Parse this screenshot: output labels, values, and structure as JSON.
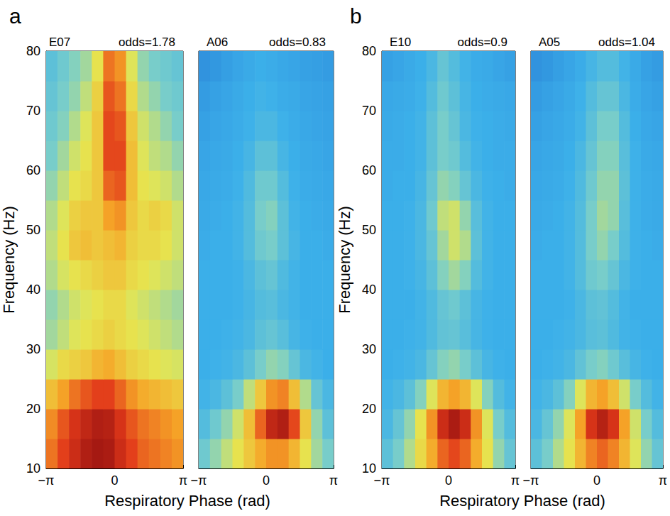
{
  "chart_data": [
    {
      "type": "heatmap",
      "panel_label": "a",
      "title": "E07",
      "subtitle": "odds=1.78",
      "xlabel": "Respiratory Phase (rad)",
      "ylabel": "Frequency (Hz)",
      "x": [
        -2.8798,
        -2.3562,
        -1.8326,
        -1.309,
        -0.7854,
        -0.2618,
        0.2618,
        0.7854,
        1.309,
        1.8326,
        2.3562,
        2.8798
      ],
      "y": [
        12.5,
        17.5,
        22.5,
        27.5,
        32.5,
        37.5,
        42.5,
        47.5,
        52.5,
        57.5,
        62.5,
        67.5,
        72.5,
        77.5
      ],
      "values": [
        [
          0.78,
          0.85,
          0.9,
          0.95,
          0.97,
          0.96,
          0.9,
          0.85,
          0.8,
          0.78,
          0.76,
          0.74
        ],
        [
          0.75,
          0.82,
          0.88,
          0.92,
          0.95,
          0.94,
          0.88,
          0.82,
          0.78,
          0.76,
          0.74,
          0.72
        ],
        [
          0.66,
          0.72,
          0.78,
          0.82,
          0.85,
          0.85,
          0.8,
          0.74,
          0.7,
          0.68,
          0.66,
          0.64
        ],
        [
          0.55,
          0.6,
          0.62,
          0.64,
          0.68,
          0.7,
          0.66,
          0.62,
          0.6,
          0.58,
          0.56,
          0.55
        ],
        [
          0.48,
          0.52,
          0.56,
          0.58,
          0.6,
          0.62,
          0.6,
          0.58,
          0.56,
          0.54,
          0.52,
          0.5
        ],
        [
          0.46,
          0.5,
          0.54,
          0.56,
          0.58,
          0.6,
          0.6,
          0.56,
          0.54,
          0.52,
          0.5,
          0.48
        ],
        [
          0.5,
          0.55,
          0.58,
          0.6,
          0.62,
          0.64,
          0.64,
          0.6,
          0.58,
          0.56,
          0.54,
          0.52
        ],
        [
          0.52,
          0.58,
          0.64,
          0.66,
          0.64,
          0.66,
          0.68,
          0.62,
          0.6,
          0.6,
          0.58,
          0.54
        ],
        [
          0.5,
          0.56,
          0.62,
          0.64,
          0.64,
          0.72,
          0.74,
          0.64,
          0.6,
          0.62,
          0.6,
          0.54
        ],
        [
          0.46,
          0.52,
          0.58,
          0.6,
          0.64,
          0.8,
          0.82,
          0.66,
          0.58,
          0.56,
          0.54,
          0.5
        ],
        [
          0.42,
          0.48,
          0.54,
          0.58,
          0.64,
          0.84,
          0.84,
          0.66,
          0.56,
          0.52,
          0.5,
          0.46
        ],
        [
          0.4,
          0.44,
          0.5,
          0.56,
          0.64,
          0.84,
          0.82,
          0.64,
          0.54,
          0.5,
          0.46,
          0.42
        ],
        [
          0.38,
          0.42,
          0.46,
          0.52,
          0.62,
          0.82,
          0.78,
          0.6,
          0.5,
          0.46,
          0.42,
          0.4
        ],
        [
          0.36,
          0.4,
          0.44,
          0.48,
          0.58,
          0.78,
          0.74,
          0.56,
          0.46,
          0.42,
          0.4,
          0.38
        ]
      ],
      "xlim": [
        -3.1416,
        3.1416
      ],
      "ylim": [
        10,
        80
      ],
      "xticks": [
        {
          "value": -3.1416,
          "label": "−π"
        },
        0,
        {
          "value": 3.1416,
          "label": "π"
        }
      ],
      "yticks": [
        10,
        20,
        30,
        40,
        50,
        60,
        70,
        80
      ],
      "clim": [
        0,
        1
      ]
    },
    {
      "type": "heatmap",
      "title": "A06",
      "subtitle": "odds=0.83",
      "tick_labels": "x",
      "x": [
        -2.8798,
        -2.3562,
        -1.8326,
        -1.309,
        -0.7854,
        -0.2618,
        0.2618,
        0.7854,
        1.309,
        1.8326,
        2.3562,
        2.8798
      ],
      "y": [
        12.5,
        17.5,
        22.5,
        27.5,
        32.5,
        37.5,
        42.5,
        47.5,
        52.5,
        57.5,
        62.5,
        67.5,
        72.5,
        77.5
      ],
      "values": [
        [
          0.4,
          0.46,
          0.52,
          0.58,
          0.64,
          0.7,
          0.74,
          0.74,
          0.68,
          0.58,
          0.48,
          0.42
        ],
        [
          0.34,
          0.4,
          0.46,
          0.54,
          0.66,
          0.8,
          0.92,
          0.95,
          0.84,
          0.64,
          0.46,
          0.36
        ],
        [
          0.3,
          0.32,
          0.36,
          0.42,
          0.52,
          0.64,
          0.74,
          0.76,
          0.66,
          0.5,
          0.38,
          0.32
        ],
        [
          0.28,
          0.29,
          0.3,
          0.32,
          0.36,
          0.42,
          0.46,
          0.44,
          0.38,
          0.32,
          0.3,
          0.28
        ],
        [
          0.28,
          0.28,
          0.29,
          0.3,
          0.32,
          0.36,
          0.38,
          0.35,
          0.31,
          0.29,
          0.28,
          0.28
        ],
        [
          0.28,
          0.28,
          0.28,
          0.29,
          0.31,
          0.34,
          0.35,
          0.32,
          0.3,
          0.28,
          0.28,
          0.28
        ],
        [
          0.28,
          0.28,
          0.28,
          0.29,
          0.32,
          0.36,
          0.38,
          0.33,
          0.3,
          0.28,
          0.28,
          0.28
        ],
        [
          0.27,
          0.28,
          0.28,
          0.3,
          0.34,
          0.4,
          0.42,
          0.36,
          0.31,
          0.28,
          0.28,
          0.27
        ],
        [
          0.26,
          0.27,
          0.28,
          0.3,
          0.34,
          0.42,
          0.44,
          0.36,
          0.3,
          0.28,
          0.27,
          0.26
        ],
        [
          0.25,
          0.26,
          0.27,
          0.29,
          0.33,
          0.4,
          0.4,
          0.34,
          0.29,
          0.27,
          0.26,
          0.25
        ],
        [
          0.24,
          0.25,
          0.26,
          0.28,
          0.31,
          0.36,
          0.36,
          0.31,
          0.28,
          0.26,
          0.25,
          0.24
        ],
        [
          0.22,
          0.24,
          0.25,
          0.27,
          0.29,
          0.32,
          0.32,
          0.29,
          0.27,
          0.25,
          0.24,
          0.23
        ],
        [
          0.2,
          0.22,
          0.24,
          0.26,
          0.28,
          0.3,
          0.29,
          0.27,
          0.26,
          0.24,
          0.23,
          0.22
        ],
        [
          0.16,
          0.18,
          0.21,
          0.24,
          0.26,
          0.28,
          0.27,
          0.25,
          0.24,
          0.22,
          0.21,
          0.2
        ]
      ],
      "xlim": [
        -3.1416,
        3.1416
      ],
      "ylim": [
        10,
        80
      ],
      "xticks": [
        {
          "value": -3.1416,
          "label": "−π"
        },
        0,
        {
          "value": 3.1416,
          "label": "π"
        }
      ],
      "yticks": [
        10,
        20,
        30,
        40,
        50,
        60,
        70,
        80
      ],
      "clim": [
        0,
        1
      ]
    },
    {
      "type": "heatmap",
      "panel_label": "b",
      "title": "E10",
      "subtitle": "odds=0.9",
      "xlabel": "Respiratory Phase (rad)",
      "ylabel": "Frequency (Hz)",
      "x": [
        -2.8798,
        -2.3562,
        -1.8326,
        -1.309,
        -0.7854,
        -0.2618,
        0.2618,
        0.7854,
        1.309,
        1.8326,
        2.3562,
        2.8798
      ],
      "y": [
        12.5,
        17.5,
        22.5,
        27.5,
        32.5,
        37.5,
        42.5,
        47.5,
        52.5,
        57.5,
        62.5,
        67.5,
        72.5,
        77.5
      ],
      "values": [
        [
          0.36,
          0.42,
          0.5,
          0.6,
          0.7,
          0.8,
          0.84,
          0.8,
          0.7,
          0.58,
          0.46,
          0.38
        ],
        [
          0.32,
          0.38,
          0.46,
          0.58,
          0.74,
          0.9,
          0.96,
          0.9,
          0.74,
          0.56,
          0.42,
          0.34
        ],
        [
          0.3,
          0.32,
          0.36,
          0.44,
          0.56,
          0.68,
          0.72,
          0.68,
          0.56,
          0.44,
          0.34,
          0.3
        ],
        [
          0.28,
          0.29,
          0.3,
          0.32,
          0.38,
          0.44,
          0.46,
          0.42,
          0.36,
          0.31,
          0.29,
          0.28
        ],
        [
          0.28,
          0.28,
          0.29,
          0.3,
          0.33,
          0.37,
          0.38,
          0.35,
          0.31,
          0.29,
          0.28,
          0.28
        ],
        [
          0.28,
          0.28,
          0.28,
          0.3,
          0.33,
          0.38,
          0.4,
          0.36,
          0.31,
          0.29,
          0.28,
          0.28
        ],
        [
          0.28,
          0.28,
          0.29,
          0.31,
          0.36,
          0.44,
          0.48,
          0.44,
          0.34,
          0.3,
          0.28,
          0.28
        ],
        [
          0.28,
          0.28,
          0.29,
          0.32,
          0.38,
          0.48,
          0.54,
          0.5,
          0.36,
          0.3,
          0.28,
          0.28
        ],
        [
          0.28,
          0.28,
          0.29,
          0.32,
          0.4,
          0.52,
          0.54,
          0.46,
          0.35,
          0.3,
          0.28,
          0.28
        ],
        [
          0.27,
          0.28,
          0.28,
          0.31,
          0.38,
          0.46,
          0.44,
          0.38,
          0.32,
          0.29,
          0.28,
          0.27
        ],
        [
          0.27,
          0.27,
          0.28,
          0.3,
          0.36,
          0.42,
          0.4,
          0.34,
          0.3,
          0.28,
          0.27,
          0.27
        ],
        [
          0.26,
          0.27,
          0.28,
          0.3,
          0.36,
          0.42,
          0.38,
          0.32,
          0.29,
          0.28,
          0.27,
          0.26
        ],
        [
          0.25,
          0.26,
          0.27,
          0.29,
          0.34,
          0.4,
          0.36,
          0.31,
          0.28,
          0.27,
          0.26,
          0.25
        ],
        [
          0.22,
          0.24,
          0.26,
          0.28,
          0.32,
          0.38,
          0.34,
          0.3,
          0.27,
          0.26,
          0.24,
          0.22
        ]
      ],
      "xlim": [
        -3.1416,
        3.1416
      ],
      "ylim": [
        10,
        80
      ],
      "xticks": [
        {
          "value": -3.1416,
          "label": "−π"
        },
        0,
        {
          "value": 3.1416,
          "label": "π"
        }
      ],
      "yticks": [
        10,
        20,
        30,
        40,
        50,
        60,
        70,
        80
      ],
      "clim": [
        0,
        1
      ]
    },
    {
      "type": "heatmap",
      "title": "A05",
      "subtitle": "odds=1.04",
      "tick_labels": "x",
      "x": [
        -2.8798,
        -2.3562,
        -1.8326,
        -1.309,
        -0.7854,
        -0.2618,
        0.2618,
        0.7854,
        1.309,
        1.8326,
        2.3562,
        2.8798
      ],
      "y": [
        12.5,
        17.5,
        22.5,
        27.5,
        32.5,
        37.5,
        42.5,
        47.5,
        52.5,
        57.5,
        62.5,
        67.5,
        72.5,
        77.5
      ],
      "values": [
        [
          0.36,
          0.42,
          0.5,
          0.58,
          0.68,
          0.76,
          0.8,
          0.76,
          0.68,
          0.56,
          0.46,
          0.38
        ],
        [
          0.32,
          0.38,
          0.46,
          0.56,
          0.72,
          0.88,
          0.94,
          0.88,
          0.72,
          0.54,
          0.42,
          0.34
        ],
        [
          0.3,
          0.32,
          0.36,
          0.44,
          0.56,
          0.68,
          0.72,
          0.66,
          0.54,
          0.42,
          0.34,
          0.3
        ],
        [
          0.28,
          0.29,
          0.3,
          0.32,
          0.37,
          0.42,
          0.44,
          0.4,
          0.35,
          0.31,
          0.29,
          0.28
        ],
        [
          0.28,
          0.28,
          0.29,
          0.3,
          0.32,
          0.35,
          0.36,
          0.33,
          0.3,
          0.29,
          0.28,
          0.28
        ],
        [
          0.28,
          0.28,
          0.28,
          0.29,
          0.32,
          0.36,
          0.37,
          0.34,
          0.3,
          0.28,
          0.28,
          0.28
        ],
        [
          0.28,
          0.28,
          0.28,
          0.3,
          0.34,
          0.4,
          0.42,
          0.38,
          0.32,
          0.29,
          0.28,
          0.28
        ],
        [
          0.27,
          0.28,
          0.28,
          0.3,
          0.34,
          0.42,
          0.46,
          0.42,
          0.34,
          0.29,
          0.28,
          0.27
        ],
        [
          0.26,
          0.27,
          0.28,
          0.3,
          0.34,
          0.42,
          0.48,
          0.46,
          0.35,
          0.29,
          0.27,
          0.26
        ],
        [
          0.25,
          0.26,
          0.27,
          0.29,
          0.33,
          0.4,
          0.46,
          0.46,
          0.36,
          0.29,
          0.27,
          0.26
        ],
        [
          0.24,
          0.25,
          0.26,
          0.28,
          0.32,
          0.38,
          0.44,
          0.44,
          0.35,
          0.29,
          0.26,
          0.25
        ],
        [
          0.22,
          0.24,
          0.25,
          0.27,
          0.3,
          0.36,
          0.42,
          0.42,
          0.34,
          0.28,
          0.25,
          0.24
        ],
        [
          0.2,
          0.22,
          0.24,
          0.26,
          0.29,
          0.34,
          0.38,
          0.38,
          0.32,
          0.27,
          0.24,
          0.22
        ],
        [
          0.16,
          0.18,
          0.21,
          0.24,
          0.27,
          0.31,
          0.34,
          0.34,
          0.3,
          0.26,
          0.22,
          0.2
        ]
      ],
      "xlim": [
        -3.1416,
        3.1416
      ],
      "ylim": [
        10,
        80
      ],
      "xticks": [
        {
          "value": -3.1416,
          "label": "−π"
        },
        0,
        {
          "value": 3.1416,
          "label": "π"
        }
      ],
      "yticks": [
        10,
        20,
        30,
        40,
        50,
        60,
        70,
        80
      ],
      "clim": [
        0,
        1
      ]
    }
  ]
}
